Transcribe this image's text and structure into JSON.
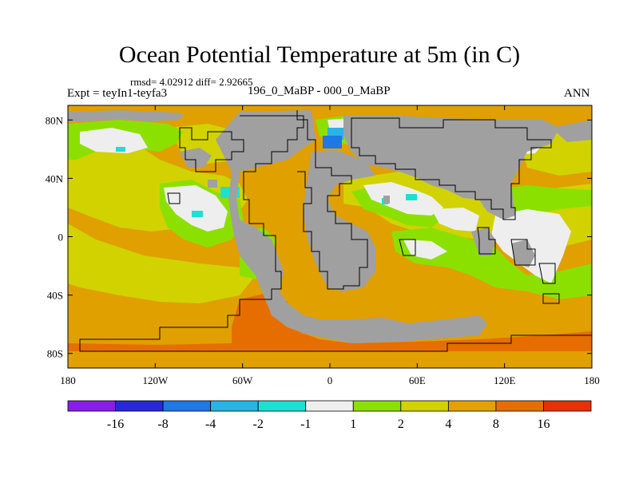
{
  "title": "Ocean Potential Temperature at 5m (in C)",
  "stats": "rmsd= 4.02912 diff= 2.92665",
  "experiment_label": "Expt = teyIn1-teyfa3",
  "comparison_label": "196_0_MaBP - 000_0_MaBP",
  "season_label": "ANN",
  "map": {
    "lon_range": [
      -180,
      180
    ],
    "lat_range": [
      -90,
      90
    ],
    "lon_ticks": [
      {
        "value": -180,
        "label": "180"
      },
      {
        "value": -120,
        "label": "120W"
      },
      {
        "value": -60,
        "label": "60W"
      },
      {
        "value": 0,
        "label": "0"
      },
      {
        "value": 60,
        "label": "60E"
      },
      {
        "value": 120,
        "label": "120E"
      },
      {
        "value": 180,
        "label": "180"
      }
    ],
    "lat_ticks": [
      {
        "value": 80,
        "label": "80N"
      },
      {
        "value": 40,
        "label": "40N"
      },
      {
        "value": 0,
        "label": "0"
      },
      {
        "value": -40,
        "label": "40S"
      },
      {
        "value": -80,
        "label": "80S"
      }
    ],
    "land_color": "#a0a0a0",
    "background_color": "#e0a000"
  },
  "colorbar": {
    "colors": [
      "#8a1ee8",
      "#2828d8",
      "#1e78e6",
      "#28b4e6",
      "#1ee0d2",
      "#eeeeee",
      "#8ce000",
      "#d2d200",
      "#e6a000",
      "#e66e00",
      "#e63200"
    ],
    "labels": [
      "-16",
      "-8",
      "-4",
      "-2",
      "-1",
      "1",
      "2",
      "4",
      "8",
      "16"
    ]
  }
}
